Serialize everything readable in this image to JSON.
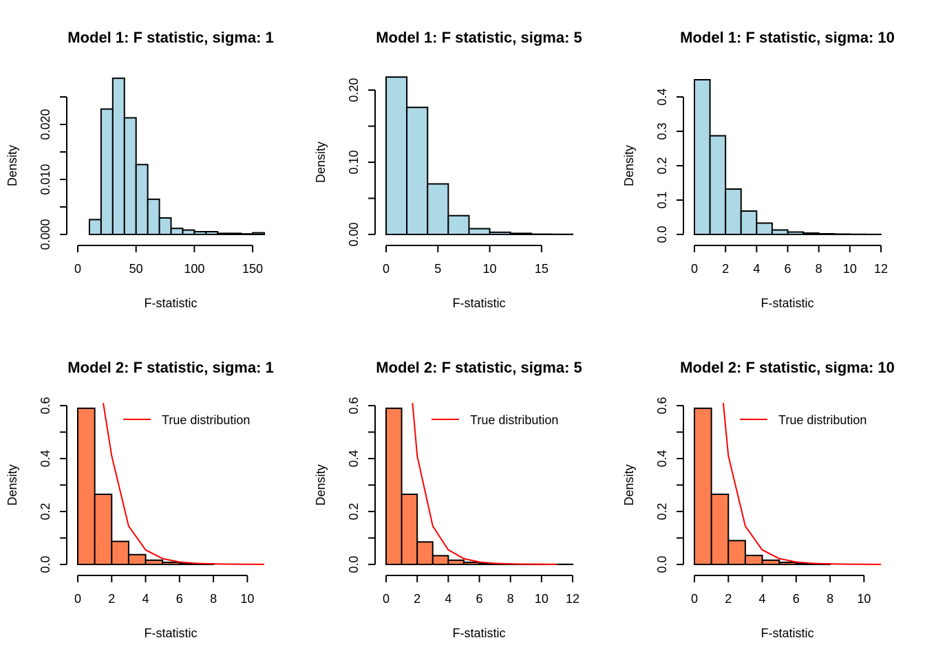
{
  "colors": {
    "model1_fill": "#add8e6",
    "model2_fill": "#ff7f50",
    "true_line": "#ff0000",
    "stroke": "#000000"
  },
  "chart_data": [
    {
      "type": "bar",
      "title": "Model 1: F statistic, sigma: 1",
      "xlabel": "F-statistic",
      "ylabel": "Density",
      "xlim": [
        0,
        160
      ],
      "ylim": [
        0,
        0.025
      ],
      "xticks": [
        0,
        50,
        100,
        150
      ],
      "yticks": [
        0.0,
        0.005,
        0.01,
        0.015,
        0.02,
        0.025
      ],
      "yticklabels": [
        "0.000",
        "",
        "0.010",
        "",
        "0.020",
        ""
      ],
      "bin_edges": [
        10,
        20,
        30,
        40,
        50,
        60,
        70,
        80,
        90,
        100,
        110,
        120,
        130,
        140,
        150,
        160
      ],
      "values": [
        0.0027,
        0.0228,
        0.0284,
        0.0212,
        0.0127,
        0.0064,
        0.003,
        0.0011,
        0.0008,
        0.0005,
        0.0005,
        0.0002,
        0.0002,
        0.0001,
        0.0003
      ],
      "legend": null
    },
    {
      "type": "bar",
      "title": "Model 1: F statistic, sigma: 5",
      "xlabel": "F-statistic",
      "ylabel": "Density",
      "xlim": [
        0,
        18
      ],
      "ylim": [
        0,
        0.2
      ],
      "xticks": [
        0,
        5,
        10,
        15
      ],
      "yticks": [
        0.0,
        0.05,
        0.1,
        0.15,
        0.2
      ],
      "yticklabels": [
        "0.00",
        "",
        "0.10",
        "",
        "0.20"
      ],
      "bin_edges": [
        0,
        2,
        4,
        6,
        8,
        10,
        12,
        14,
        16,
        18
      ],
      "values": [
        0.218,
        0.176,
        0.07,
        0.026,
        0.008,
        0.003,
        0.0015,
        0.0004,
        0.0002
      ],
      "legend": null
    },
    {
      "type": "bar",
      "title": "Model 1: F statistic, sigma: 10",
      "xlabel": "F-statistic",
      "ylabel": "Density",
      "xlim": [
        0,
        12
      ],
      "ylim": [
        0,
        0.4
      ],
      "xticks": [
        0,
        2,
        4,
        6,
        8,
        10,
        12
      ],
      "yticks": [
        0.0,
        0.1,
        0.2,
        0.3,
        0.4
      ],
      "yticklabels": [
        "0.0",
        "0.1",
        "0.2",
        "0.3",
        "0.4"
      ],
      "bin_edges": [
        0,
        1,
        2,
        3,
        4,
        5,
        6,
        7,
        8,
        9,
        10,
        11,
        12
      ],
      "values": [
        0.45,
        0.287,
        0.132,
        0.068,
        0.033,
        0.013,
        0.007,
        0.004,
        0.002,
        0.001,
        0.0005,
        0.0002
      ],
      "legend": null
    },
    {
      "type": "bar",
      "title": "Model 2: F statistic, sigma: 1",
      "xlabel": "F-statistic",
      "ylabel": "Density",
      "xlim": [
        0,
        11
      ],
      "ylim": [
        0,
        0.6
      ],
      "xticks": [
        0,
        2,
        4,
        6,
        8,
        10
      ],
      "yticks": [
        0.0,
        0.1,
        0.2,
        0.3,
        0.4,
        0.5,
        0.6
      ],
      "yticklabels": [
        "0.0",
        "",
        "0.2",
        "",
        "0.4",
        "",
        "0.6"
      ],
      "bin_edges": [
        0,
        1,
        2,
        3,
        4,
        5,
        6,
        7,
        8
      ],
      "values": [
        0.59,
        0.265,
        0.087,
        0.037,
        0.016,
        0.008,
        0.004,
        0.002
      ],
      "true_line": {
        "x": [
          1.5,
          2,
          3,
          4,
          5,
          6,
          7,
          8,
          9,
          10,
          11
        ],
        "y": [
          0.61,
          0.41,
          0.145,
          0.055,
          0.022,
          0.009,
          0.004,
          0.002,
          0.001,
          0.0005,
          0.0002
        ]
      },
      "legend": {
        "label": "True distribution",
        "placement": "top-right"
      }
    },
    {
      "type": "bar",
      "title": "Model 2: F statistic, sigma: 5",
      "xlabel": "F-statistic",
      "ylabel": "Density",
      "xlim": [
        0,
        12
      ],
      "ylim": [
        0,
        0.6
      ],
      "xticks": [
        0,
        2,
        4,
        6,
        8,
        10,
        12
      ],
      "yticks": [
        0.0,
        0.1,
        0.2,
        0.3,
        0.4,
        0.5,
        0.6
      ],
      "yticklabels": [
        "0.0",
        "",
        "0.2",
        "",
        "0.4",
        "",
        "0.6"
      ],
      "bin_edges": [
        0,
        1,
        2,
        3,
        4,
        5,
        6,
        7,
        8,
        9,
        10,
        11,
        12
      ],
      "values": [
        0.59,
        0.265,
        0.085,
        0.033,
        0.016,
        0.008,
        0.004,
        0.002,
        0.001,
        0.0005,
        0.0003,
        0.0005
      ],
      "true_line": {
        "x": [
          1.7,
          2,
          3,
          4,
          5,
          6,
          7,
          8,
          9,
          10,
          11
        ],
        "y": [
          0.61,
          0.41,
          0.145,
          0.055,
          0.022,
          0.009,
          0.004,
          0.002,
          0.001,
          0.0005,
          0.0002
        ]
      },
      "legend": {
        "label": "True distribution",
        "placement": "top-right"
      }
    },
    {
      "type": "bar",
      "title": "Model 2: F statistic, sigma: 10",
      "xlabel": "F-statistic",
      "ylabel": "Density",
      "xlim": [
        0,
        11
      ],
      "ylim": [
        0,
        0.6
      ],
      "xticks": [
        0,
        2,
        4,
        6,
        8,
        10
      ],
      "yticks": [
        0.0,
        0.1,
        0.2,
        0.3,
        0.4,
        0.5,
        0.6
      ],
      "yticklabels": [
        "0.0",
        "",
        "0.2",
        "",
        "0.4",
        "",
        "0.6"
      ],
      "bin_edges": [
        0,
        1,
        2,
        3,
        4,
        5,
        6,
        7,
        8
      ],
      "values": [
        0.59,
        0.265,
        0.09,
        0.034,
        0.016,
        0.008,
        0.004,
        0.002
      ],
      "true_line": {
        "x": [
          1.7,
          2,
          3,
          4,
          5,
          6,
          7,
          8,
          9,
          10,
          11
        ],
        "y": [
          0.61,
          0.41,
          0.145,
          0.055,
          0.022,
          0.009,
          0.004,
          0.002,
          0.001,
          0.0005,
          0.0002
        ]
      },
      "legend": {
        "label": "True distribution",
        "placement": "top-right"
      }
    }
  ]
}
